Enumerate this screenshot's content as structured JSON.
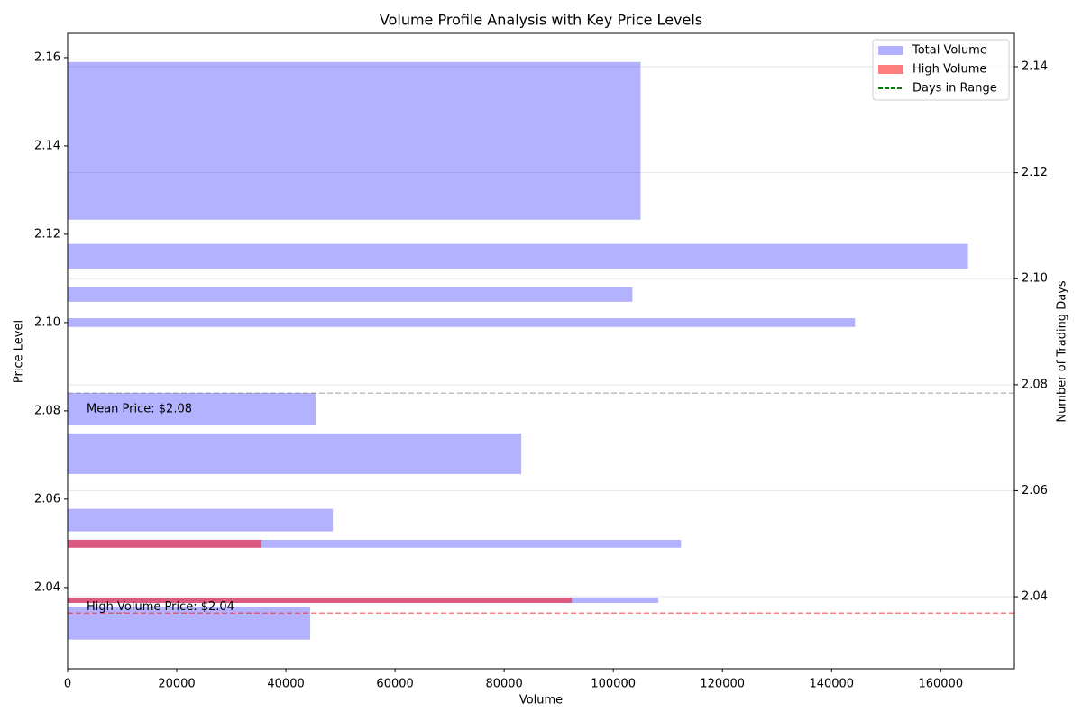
{
  "chart_data": {
    "type": "bar",
    "orientation": "horizontal",
    "title": "Volume Profile Analysis with Key Price Levels",
    "xlabel": "Volume",
    "ylabel": "Price Level",
    "y2label": "Number of Trading Days",
    "series": [
      {
        "name": "Total Volume",
        "color": "rgba(0,0,255,0.3)",
        "values": [
          105000,
          165000,
          103500,
          144300,
          45450,
          83140,
          48600,
          112400,
          108260,
          44460
        ],
        "price_low": [
          2.1233,
          2.1122,
          2.1047,
          2.099,
          2.0767,
          2.0657,
          2.0527,
          2.049,
          2.0365,
          2.0282
        ],
        "price_high": [
          2.159,
          2.1178,
          2.108,
          2.101,
          2.0841,
          2.0749,
          2.0578,
          2.0508,
          2.0376,
          2.0357
        ]
      },
      {
        "name": "High Volume",
        "color": "rgba(255,0,0,0.5)",
        "values": [
          35540,
          92400
        ],
        "price_low": [
          2.049,
          2.0365
        ],
        "price_high": [
          2.0508,
          2.0376
        ]
      },
      {
        "name": "Days in Range",
        "color": "green",
        "dash": true,
        "axis": "y2",
        "values": []
      }
    ],
    "lines": [
      {
        "value": 2.0784,
        "axis": "y2",
        "color": "gray",
        "label": "Mean Price: $2.08"
      },
      {
        "value": 2.0369,
        "axis": "y2",
        "color": "red",
        "label": "High Volume Price: $2.04"
      }
    ],
    "xlim": [
      0,
      173500
    ],
    "xticks": [
      0,
      20000,
      40000,
      60000,
      80000,
      100000,
      120000,
      140000,
      160000
    ],
    "ylim": [
      2.0216,
      2.1655
    ],
    "yticks": [
      2.04,
      2.06,
      2.08,
      {
        "value": 2.1,
        "label": "2.10"
      },
      2.12,
      2.14,
      2.16
    ],
    "y2lim": [
      2.0264,
      2.1463
    ],
    "y2ticks": [
      2.04,
      2.06,
      2.08,
      {
        "value": 2.1,
        "label": "2.10"
      },
      2.12,
      2.14
    ],
    "grid": "y2",
    "legend": "upper right"
  }
}
